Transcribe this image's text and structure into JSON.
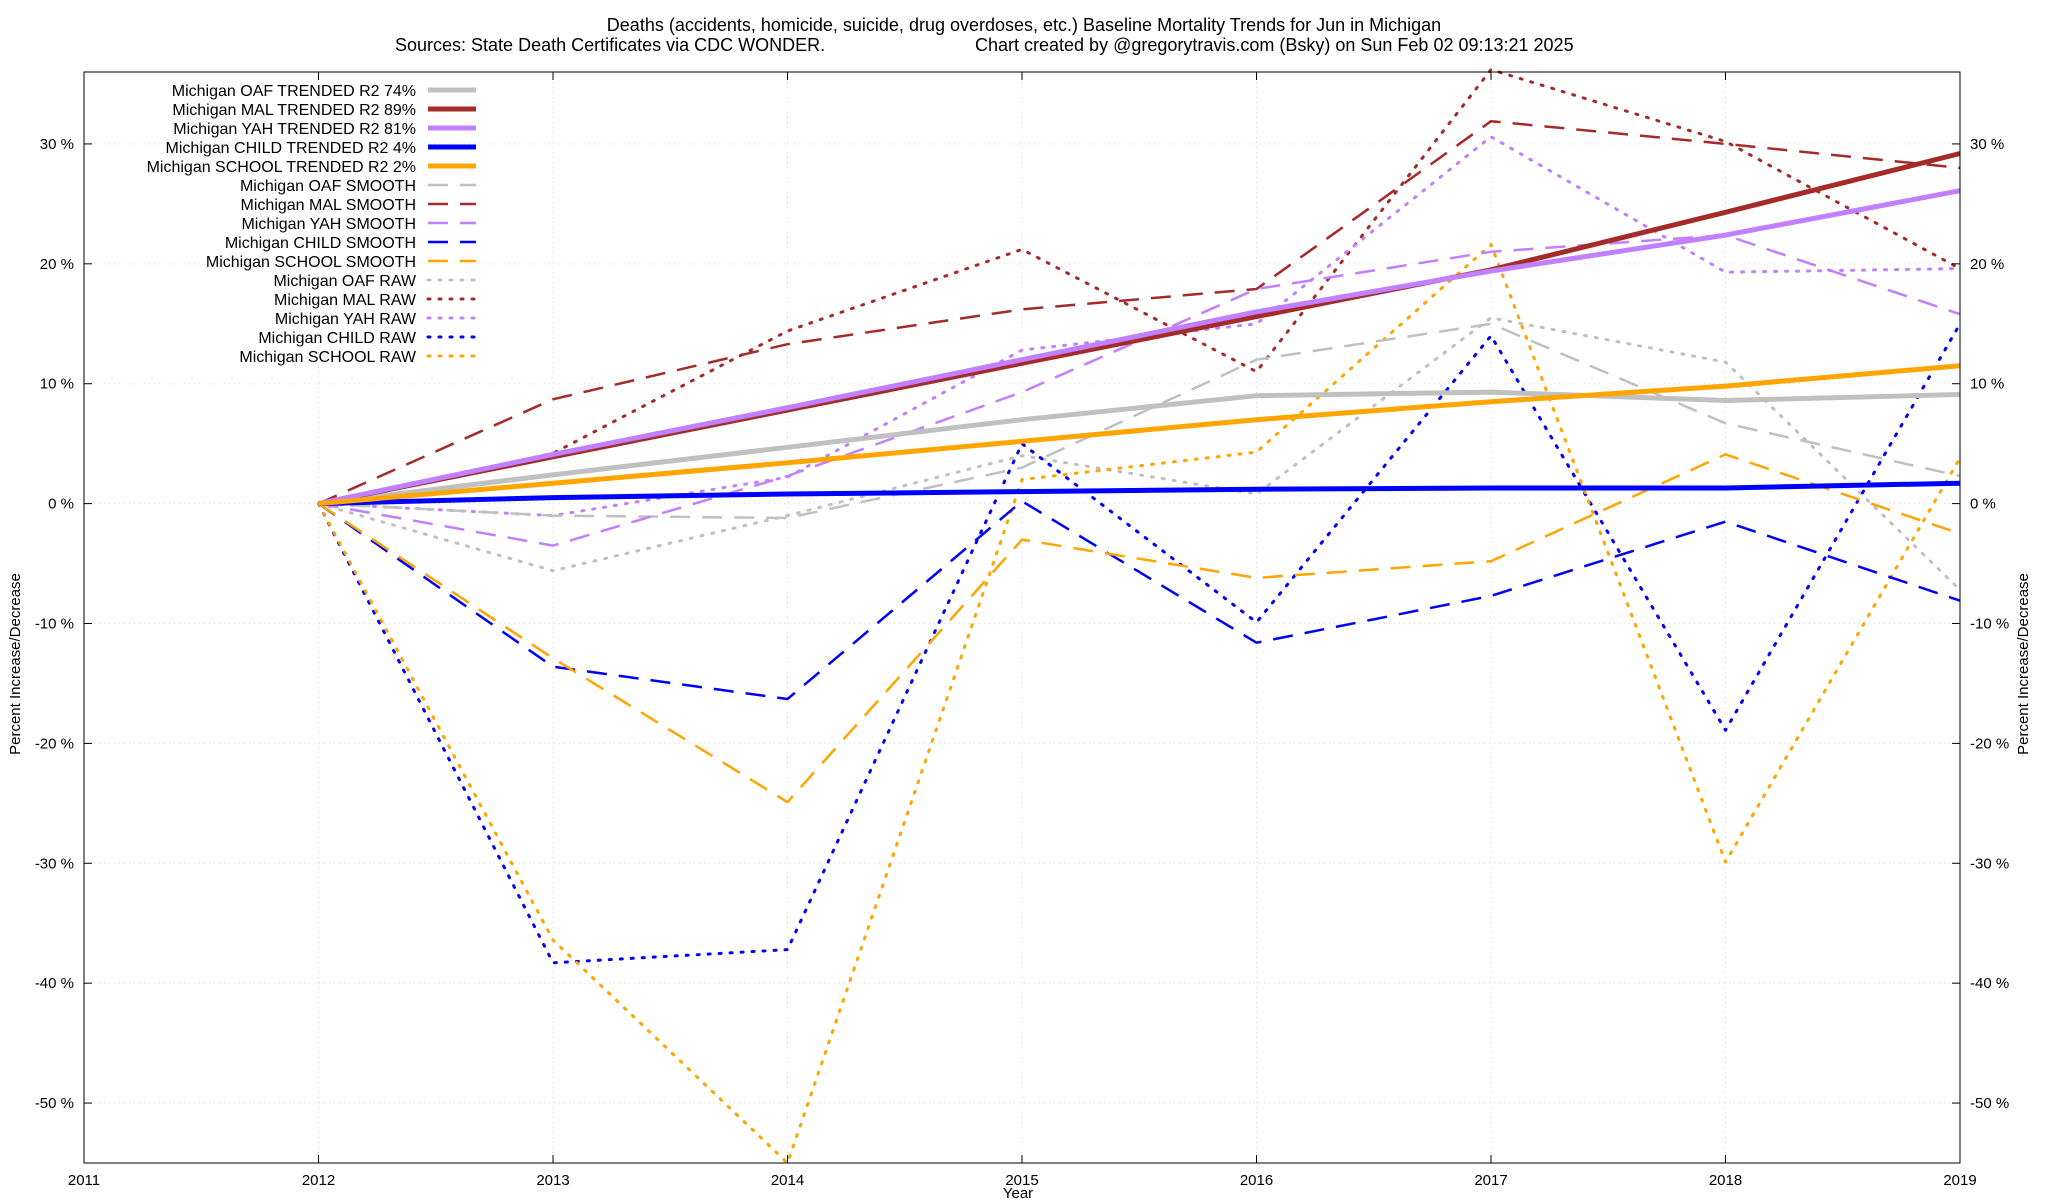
{
  "chart_data": {
    "type": "line",
    "title": "Deaths (accidents, homicide, suicide, drug overdoses, etc.)  Baseline Mortality Trends for Jun in Michigan",
    "subtitle_left": "Sources: State Death Certificates via CDC WONDER.",
    "subtitle_right": "Chart created by @gregorytravis.com (Bsky) on Sun Feb 02 09:13:21 2025",
    "xlabel": "Year",
    "ylabel": "Percent Increase/Decrease",
    "xlim": [
      2011,
      2019
    ],
    "ylim": [
      -55,
      36
    ],
    "x_ticks": [
      {
        "value": 2011,
        "label": "2011"
      },
      {
        "value": 2012,
        "label": "2012"
      },
      {
        "value": 2013,
        "label": "2013"
      },
      {
        "value": 2014,
        "label": "2014"
      },
      {
        "value": 2015,
        "label": "2015"
      },
      {
        "value": 2016,
        "label": "2016"
      },
      {
        "value": 2017,
        "label": "2017"
      },
      {
        "value": 2018,
        "label": "2018"
      },
      {
        "value": 2019,
        "label": "2019"
      }
    ],
    "y_ticks": [
      {
        "value": 30,
        "label": "30 %"
      },
      {
        "value": 20,
        "label": "20 %"
      },
      {
        "value": 10,
        "label": "10 %"
      },
      {
        "value": 0,
        "label": "0 %"
      },
      {
        "value": -10,
        "label": "-10 %"
      },
      {
        "value": -20,
        "label": "-20 %"
      },
      {
        "value": -30,
        "label": "-30 %"
      },
      {
        "value": -40,
        "label": "-40 %"
      },
      {
        "value": -50,
        "label": "-50 %"
      }
    ],
    "grid": true,
    "legend_position": "top-left",
    "x": [
      2012,
      2013,
      2014,
      2015,
      2016,
      2017,
      2018,
      2019
    ],
    "series": [
      {
        "name": "Michigan OAF TRENDED R2  74%",
        "style": "solid",
        "color": "#c0c0c0",
        "values": [
          0,
          2.4,
          4.7,
          7.0,
          9.0,
          9.3,
          8.6,
          9.1
        ]
      },
      {
        "name": "Michigan MAL TRENDED R2  89%",
        "style": "solid",
        "color": "#a52a2a",
        "values": [
          0,
          3.9,
          7.8,
          11.7,
          15.6,
          19.5,
          24.3,
          29.2
        ]
      },
      {
        "name": "Michigan YAH TRENDED R2  81%",
        "style": "solid",
        "color": "#c080ff",
        "values": [
          0,
          4.1,
          8.0,
          12.0,
          16.0,
          19.4,
          22.4,
          26.1
        ]
      },
      {
        "name": "Michigan CHILD TRENDED R2   4%",
        "style": "solid",
        "color": "#0000ff",
        "values": [
          0,
          0.5,
          0.8,
          1.0,
          1.2,
          1.3,
          1.3,
          1.7
        ]
      },
      {
        "name": "Michigan SCHOOL TRENDED R2   2%",
        "style": "solid",
        "color": "#ffa500",
        "values": [
          0,
          1.7,
          3.4,
          5.2,
          7.0,
          8.5,
          9.8,
          11.5
        ]
      },
      {
        "name": "Michigan OAF SMOOTH",
        "style": "dashed",
        "color": "#c0c0c0",
        "values": [
          0,
          -1.0,
          -1.2,
          3.0,
          12.0,
          15.0,
          6.7,
          2.3
        ]
      },
      {
        "name": "Michigan MAL SMOOTH",
        "style": "dashed",
        "color": "#a52a2a",
        "values": [
          0,
          8.7,
          13.3,
          16.2,
          17.9,
          31.9,
          30.0,
          28.0
        ]
      },
      {
        "name": "Michigan YAH SMOOTH",
        "style": "dashed",
        "color": "#c080ff",
        "values": [
          0,
          -3.5,
          2.3,
          9.3,
          17.9,
          21.0,
          22.4,
          15.8
        ]
      },
      {
        "name": "Michigan CHILD SMOOTH",
        "style": "dashed",
        "color": "#0000ff",
        "values": [
          0,
          -13.6,
          -16.3,
          0.2,
          -11.6,
          -7.7,
          -1.5,
          -8.1
        ]
      },
      {
        "name": "Michigan SCHOOL SMOOTH",
        "style": "dashed",
        "color": "#ffa500",
        "values": [
          0,
          -12.9,
          -24.9,
          -3.0,
          -6.2,
          -4.8,
          4.1,
          -2.5
        ]
      },
      {
        "name": "Michigan OAF RAW",
        "style": "dotted",
        "color": "#c0c0c0",
        "values": [
          0,
          -5.6,
          -1.0,
          4.0,
          0.8,
          15.5,
          11.8,
          -7.2
        ]
      },
      {
        "name": "Michigan MAL RAW",
        "style": "dotted",
        "color": "#a52a2a",
        "values": [
          0,
          4.2,
          14.4,
          21.2,
          11.0,
          36.2,
          30.2,
          19.6
        ]
      },
      {
        "name": "Michigan YAH RAW",
        "style": "dotted",
        "color": "#c080ff",
        "values": [
          0,
          -1.0,
          2.2,
          12.8,
          15.0,
          30.6,
          19.3,
          19.6
        ]
      },
      {
        "name": "Michigan CHILD RAW",
        "style": "dotted",
        "color": "#0000ff",
        "values": [
          0,
          -38.3,
          -37.2,
          5.0,
          -9.9,
          14.0,
          -18.9,
          15.0
        ]
      },
      {
        "name": "Michigan SCHOOL RAW",
        "style": "dotted",
        "color": "#ffa500",
        "values": [
          0,
          -36.4,
          -55.0,
          2.0,
          4.3,
          21.6,
          -29.9,
          3.8
        ]
      }
    ]
  }
}
